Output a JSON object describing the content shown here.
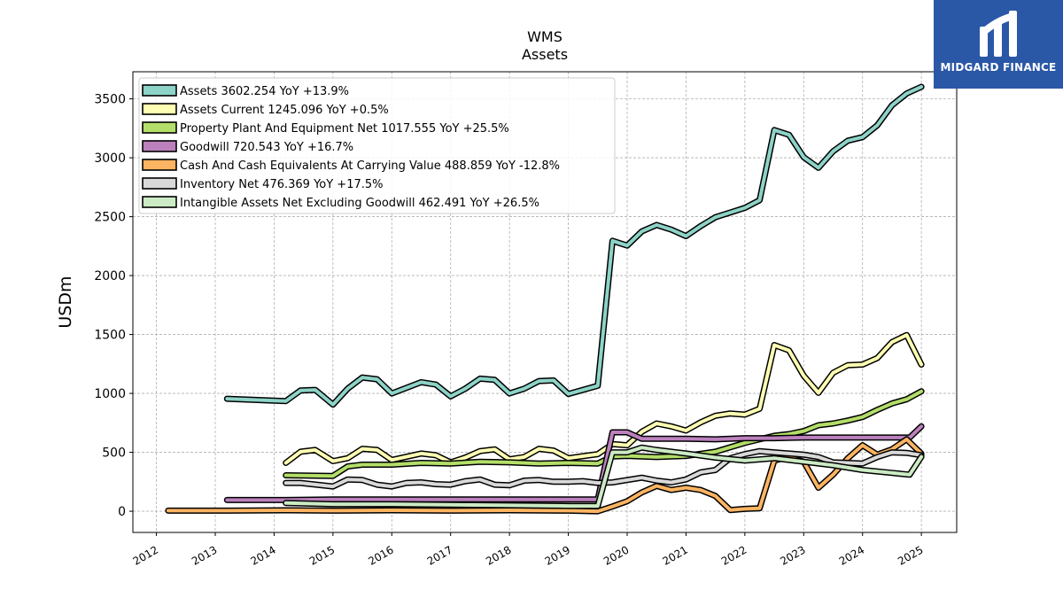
{
  "chart_data": {
    "type": "line",
    "title": "WMS",
    "subtitle": "Assets",
    "ylabel": "USDm",
    "xlabel": "",
    "xlim": [
      2011.6,
      2025.6
    ],
    "ylim": [
      -180,
      3730
    ],
    "yticks": [
      0,
      500,
      1000,
      1500,
      2000,
      2500,
      3000,
      3500
    ],
    "xticks": [
      "2012",
      "2013",
      "2014",
      "2015",
      "2016",
      "2017",
      "2018",
      "2019",
      "2020",
      "2021",
      "2022",
      "2023",
      "2024",
      "2025"
    ],
    "grid": true,
    "legend_position": "top-left",
    "series": [
      {
        "name": "Assets  3602.254 YoY +13.9%",
        "color": "#8dd3c7",
        "points": [
          [
            2013.2,
            955
          ],
          [
            2014.2,
            935
          ],
          [
            2014.45,
            1025
          ],
          [
            2014.7,
            1030
          ],
          [
            2015.0,
            905
          ],
          [
            2015.25,
            1040
          ],
          [
            2015.5,
            1135
          ],
          [
            2015.75,
            1120
          ],
          [
            2016.0,
            1000
          ],
          [
            2016.5,
            1095
          ],
          [
            2016.75,
            1075
          ],
          [
            2017.0,
            975
          ],
          [
            2017.25,
            1040
          ],
          [
            2017.5,
            1125
          ],
          [
            2017.75,
            1115
          ],
          [
            2018.0,
            1000
          ],
          [
            2018.25,
            1040
          ],
          [
            2018.5,
            1105
          ],
          [
            2018.75,
            1110
          ],
          [
            2019.0,
            995
          ],
          [
            2019.5,
            1065
          ],
          [
            2019.75,
            2295
          ],
          [
            2020.0,
            2255
          ],
          [
            2020.25,
            2375
          ],
          [
            2020.5,
            2430
          ],
          [
            2020.75,
            2390
          ],
          [
            2021.0,
            2335
          ],
          [
            2021.25,
            2420
          ],
          [
            2021.5,
            2495
          ],
          [
            2021.75,
            2535
          ],
          [
            2022.0,
            2575
          ],
          [
            2022.25,
            2640
          ],
          [
            2022.5,
            3235
          ],
          [
            2022.75,
            3195
          ],
          [
            2023.0,
            3005
          ],
          [
            2023.25,
            2915
          ],
          [
            2023.5,
            3055
          ],
          [
            2023.75,
            3145
          ],
          [
            2024.0,
            3175
          ],
          [
            2024.25,
            3275
          ],
          [
            2024.5,
            3445
          ],
          [
            2024.75,
            3545
          ],
          [
            2025.0,
            3602
          ]
        ]
      },
      {
        "name": "Assets Current  1245.096 YoY +0.5%",
        "color": "#ffffb3",
        "points": [
          [
            2014.2,
            410
          ],
          [
            2014.45,
            505
          ],
          [
            2014.7,
            520
          ],
          [
            2015.0,
            425
          ],
          [
            2015.25,
            450
          ],
          [
            2015.5,
            530
          ],
          [
            2015.75,
            520
          ],
          [
            2016.0,
            435
          ],
          [
            2016.5,
            490
          ],
          [
            2016.75,
            475
          ],
          [
            2017.0,
            415
          ],
          [
            2017.25,
            455
          ],
          [
            2017.5,
            510
          ],
          [
            2017.75,
            525
          ],
          [
            2018.0,
            440
          ],
          [
            2018.25,
            460
          ],
          [
            2018.5,
            530
          ],
          [
            2018.75,
            515
          ],
          [
            2019.0,
            450
          ],
          [
            2019.5,
            485
          ],
          [
            2019.75,
            570
          ],
          [
            2020.0,
            560
          ],
          [
            2020.25,
            675
          ],
          [
            2020.5,
            745
          ],
          [
            2020.75,
            720
          ],
          [
            2021.0,
            685
          ],
          [
            2021.25,
            755
          ],
          [
            2021.5,
            810
          ],
          [
            2021.75,
            830
          ],
          [
            2022.0,
            820
          ],
          [
            2022.25,
            870
          ],
          [
            2022.5,
            1410
          ],
          [
            2022.75,
            1365
          ],
          [
            2023.0,
            1150
          ],
          [
            2023.25,
            1005
          ],
          [
            2023.5,
            1175
          ],
          [
            2023.75,
            1240
          ],
          [
            2024.0,
            1245
          ],
          [
            2024.25,
            1300
          ],
          [
            2024.5,
            1435
          ],
          [
            2024.75,
            1495
          ],
          [
            2025.0,
            1245
          ]
        ]
      },
      {
        "name": "Property Plant And Equipment Net  1017.555 YoY +25.5%",
        "color": "#b3de69",
        "points": [
          [
            2014.2,
            305
          ],
          [
            2015.0,
            300
          ],
          [
            2015.25,
            380
          ],
          [
            2015.5,
            395
          ],
          [
            2016.0,
            395
          ],
          [
            2016.5,
            410
          ],
          [
            2017.0,
            405
          ],
          [
            2017.5,
            420
          ],
          [
            2018.0,
            415
          ],
          [
            2018.5,
            405
          ],
          [
            2019.0,
            410
          ],
          [
            2019.5,
            405
          ],
          [
            2019.75,
            465
          ],
          [
            2020.0,
            470
          ],
          [
            2020.5,
            460
          ],
          [
            2021.0,
            470
          ],
          [
            2021.5,
            505
          ],
          [
            2022.0,
            580
          ],
          [
            2022.5,
            640
          ],
          [
            2022.75,
            655
          ],
          [
            2023.0,
            680
          ],
          [
            2023.25,
            730
          ],
          [
            2023.5,
            745
          ],
          [
            2023.75,
            770
          ],
          [
            2024.0,
            800
          ],
          [
            2024.25,
            860
          ],
          [
            2024.5,
            915
          ],
          [
            2024.75,
            950
          ],
          [
            2025.0,
            1018
          ]
        ]
      },
      {
        "name": "Goodwill  720.543 YoY +16.7%",
        "color": "#bc80bd",
        "points": [
          [
            2013.2,
            95
          ],
          [
            2014.2,
            95
          ],
          [
            2015.0,
            100
          ],
          [
            2016.0,
            100
          ],
          [
            2017.0,
            100
          ],
          [
            2018.0,
            100
          ],
          [
            2019.0,
            100
          ],
          [
            2019.5,
            100
          ],
          [
            2019.75,
            670
          ],
          [
            2020.0,
            670
          ],
          [
            2020.25,
            615
          ],
          [
            2020.5,
            615
          ],
          [
            2021.0,
            615
          ],
          [
            2021.5,
            610
          ],
          [
            2022.0,
            620
          ],
          [
            2022.5,
            620
          ],
          [
            2023.0,
            625
          ],
          [
            2023.5,
            625
          ],
          [
            2024.0,
            625
          ],
          [
            2024.5,
            625
          ],
          [
            2024.8,
            625
          ],
          [
            2025.0,
            720
          ]
        ]
      },
      {
        "name": "Cash And Cash Equivalents At Carrying Value  488.859 YoY -12.8%",
        "color": "#fdb462",
        "points": [
          [
            2012.2,
            5
          ],
          [
            2013.2,
            5
          ],
          [
            2014.2,
            8
          ],
          [
            2015.0,
            5
          ],
          [
            2016.0,
            8
          ],
          [
            2017.0,
            5
          ],
          [
            2018.0,
            8
          ],
          [
            2019.0,
            5
          ],
          [
            2019.5,
            0
          ],
          [
            2019.75,
            40
          ],
          [
            2020.0,
            85
          ],
          [
            2020.25,
            160
          ],
          [
            2020.5,
            215
          ],
          [
            2020.75,
            180
          ],
          [
            2021.0,
            200
          ],
          [
            2021.25,
            180
          ],
          [
            2021.5,
            130
          ],
          [
            2021.75,
            10
          ],
          [
            2022.0,
            20
          ],
          [
            2022.25,
            25
          ],
          [
            2022.5,
            430
          ],
          [
            2022.75,
            460
          ],
          [
            2023.0,
            420
          ],
          [
            2023.25,
            200
          ],
          [
            2023.5,
            310
          ],
          [
            2023.75,
            450
          ],
          [
            2024.0,
            560
          ],
          [
            2024.25,
            480
          ],
          [
            2024.5,
            525
          ],
          [
            2024.75,
            610
          ],
          [
            2025.0,
            489
          ]
        ]
      },
      {
        "name": "Inventory Net  476.369 YoY +17.5%",
        "color": "#d9d9d9",
        "points": [
          [
            2014.2,
            240
          ],
          [
            2014.45,
            240
          ],
          [
            2015.0,
            210
          ],
          [
            2015.25,
            270
          ],
          [
            2015.5,
            265
          ],
          [
            2015.75,
            225
          ],
          [
            2016.0,
            210
          ],
          [
            2016.25,
            240
          ],
          [
            2016.5,
            245
          ],
          [
            2016.75,
            230
          ],
          [
            2017.0,
            225
          ],
          [
            2017.25,
            255
          ],
          [
            2017.5,
            270
          ],
          [
            2017.75,
            225
          ],
          [
            2018.0,
            220
          ],
          [
            2018.25,
            260
          ],
          [
            2018.5,
            265
          ],
          [
            2018.75,
            250
          ],
          [
            2019.0,
            250
          ],
          [
            2019.25,
            255
          ],
          [
            2019.5,
            240
          ],
          [
            2019.75,
            245
          ],
          [
            2020.0,
            265
          ],
          [
            2020.25,
            285
          ],
          [
            2020.5,
            260
          ],
          [
            2020.75,
            245
          ],
          [
            2021.0,
            270
          ],
          [
            2021.25,
            330
          ],
          [
            2021.5,
            350
          ],
          [
            2021.75,
            450
          ],
          [
            2022.0,
            485
          ],
          [
            2022.25,
            510
          ],
          [
            2022.5,
            500
          ],
          [
            2022.75,
            490
          ],
          [
            2023.0,
            480
          ],
          [
            2023.25,
            460
          ],
          [
            2023.5,
            415
          ],
          [
            2023.75,
            410
          ],
          [
            2024.0,
            405
          ],
          [
            2024.25,
            460
          ],
          [
            2024.5,
            500
          ],
          [
            2024.75,
            495
          ],
          [
            2025.0,
            476
          ]
        ]
      },
      {
        "name": "Intangible Assets Net Excluding Goodwill  462.491 YoY +26.5%",
        "color": "#ccebc5",
        "points": [
          [
            2014.2,
            70
          ],
          [
            2015.0,
            60
          ],
          [
            2016.0,
            60
          ],
          [
            2017.0,
            55
          ],
          [
            2018.0,
            50
          ],
          [
            2019.0,
            45
          ],
          [
            2019.5,
            45
          ],
          [
            2019.75,
            500
          ],
          [
            2020.0,
            500
          ],
          [
            2020.25,
            540
          ],
          [
            2020.5,
            520
          ],
          [
            2021.0,
            490
          ],
          [
            2021.5,
            455
          ],
          [
            2022.0,
            430
          ],
          [
            2022.5,
            450
          ],
          [
            2023.0,
            420
          ],
          [
            2023.5,
            390
          ],
          [
            2024.0,
            350
          ],
          [
            2024.5,
            325
          ],
          [
            2024.8,
            310
          ],
          [
            2025.0,
            462
          ]
        ]
      }
    ]
  },
  "logo": {
    "brand": "MIDGARD FINANCE"
  }
}
